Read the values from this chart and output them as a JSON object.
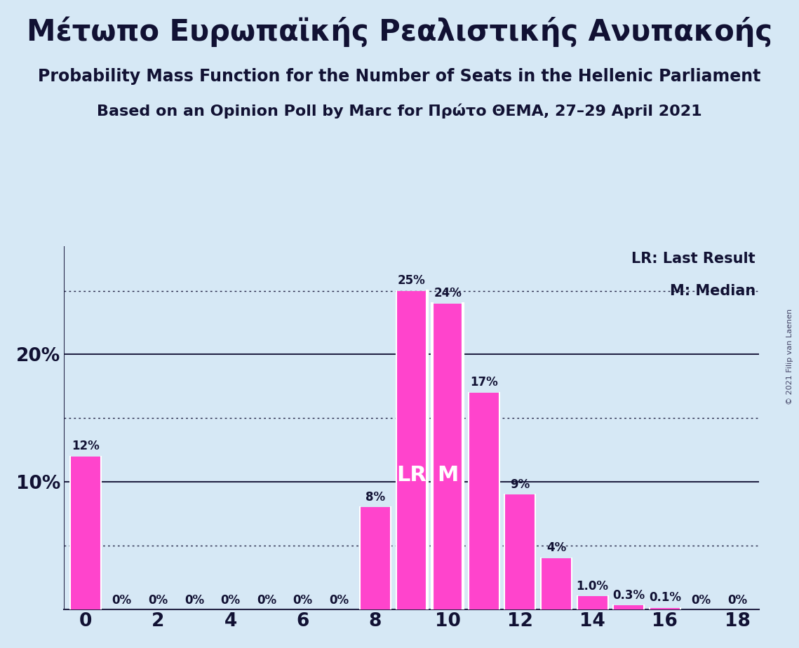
{
  "title1": "Μέτωπο Ευρωπαϊκής Ρεαλιστικής Ανυπακοής",
  "title2": "Probability Mass Function for the Number of Seats in the Hellenic Parliament",
  "title3": "Based on an Opinion Poll by Marc for Πρώτο ΘΕΜΑ, 27–29 April 2021",
  "copyright": "© 2021 Filip van Laenen",
  "seats": [
    0,
    1,
    2,
    3,
    4,
    5,
    6,
    7,
    8,
    9,
    10,
    11,
    12,
    13,
    14,
    15,
    16,
    17,
    18
  ],
  "probabilities": [
    0.12,
    0.0,
    0.0,
    0.0,
    0.0,
    0.0,
    0.0,
    0.0,
    0.08,
    0.25,
    0.24,
    0.17,
    0.09,
    0.04,
    0.01,
    0.003,
    0.001,
    0.0,
    0.0
  ],
  "prob_labels": [
    "12%",
    "0%",
    "0%",
    "0%",
    "0%",
    "0%",
    "0%",
    "0%",
    "8%",
    "25%",
    "24%",
    "17%",
    "9%",
    "4%",
    "1.0%",
    "0.3%",
    "0.1%",
    "0%",
    "0%"
  ],
  "bar_color": "#FF44CC",
  "background_color": "#D6E8F5",
  "lr_seat": 9,
  "median_seat": 10,
  "lr_label": "LR",
  "median_label": "M",
  "legend_lr": "LR: Last Result",
  "legend_m": "M: Median",
  "xlim": [
    -0.6,
    18.6
  ],
  "ylim": [
    0,
    0.285
  ],
  "dotted_grid_levels": [
    0.05,
    0.15,
    0.25
  ],
  "solid_grid_levels": [
    0.1,
    0.2
  ],
  "title1_fontsize": 30,
  "title2_fontsize": 17,
  "title3_fontsize": 16,
  "bar_label_fontsize": 12,
  "axis_tick_fontsize": 19,
  "legend_fontsize": 15,
  "copyright_fontsize": 8
}
